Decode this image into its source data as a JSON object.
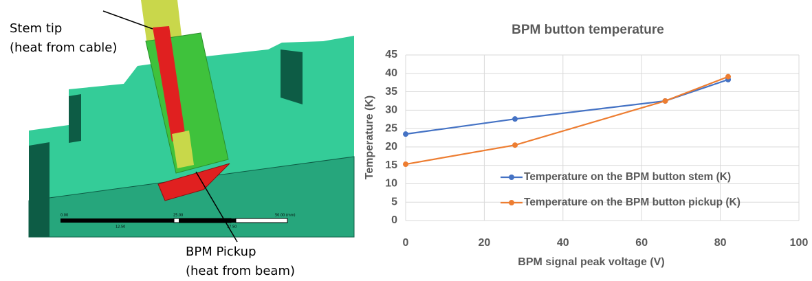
{
  "figure": {
    "labels": [
      "Stem tip",
      "(heat from cable)",
      "BPM Pickup",
      "(heat from beam)"
    ],
    "scale": [
      "0.00",
      "25.00",
      "50.00 (mm)",
      "12.50",
      "37.50"
    ]
  },
  "chart_data": {
    "type": "line",
    "title": "BPM button temperature",
    "x_label": "BPM signal peak voltage (V)",
    "y_label": "Temperature (K)",
    "xlim": [
      0,
      100
    ],
    "xticks": [
      0,
      20,
      40,
      60,
      80,
      100
    ],
    "ylim": [
      0,
      45
    ],
    "yticks": [
      0,
      5,
      10,
      15,
      20,
      25,
      30,
      35,
      40,
      45
    ],
    "grid": true,
    "legend": "lower right",
    "series": [
      {
        "name": "Temperature on the BPM button stem (K)",
        "color": "#4472c4",
        "x": [
          0,
          27.8,
          66,
          82
        ],
        "values": [
          23.5,
          27.6,
          32.5,
          38.3
        ]
      },
      {
        "name": "Temperature on the BPM button pickup (K)",
        "color": "#ed7d31",
        "x": [
          0,
          27.8,
          66,
          82
        ],
        "values": [
          15.3,
          20.5,
          32.5,
          39.1
        ]
      }
    ]
  }
}
